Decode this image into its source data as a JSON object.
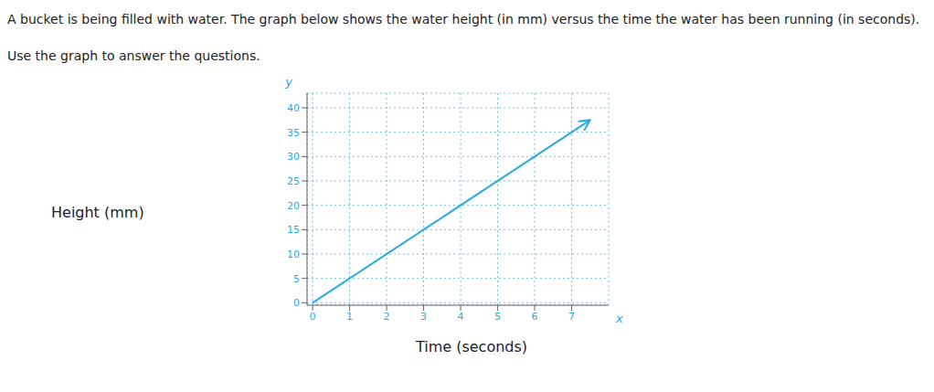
{
  "chart_data": {
    "type": "line",
    "title": "A bucket is being filled with water. The graph below shows the water height (in mm) versus the time the water has been running (in seconds).",
    "subtitle": "Use the graph to answer the questions.",
    "xlabel": "Time (seconds)",
    "ylabel": "Height (mm)",
    "annotations": [
      "y",
      "x"
    ],
    "x": [
      0,
      7.5
    ],
    "values": [
      0,
      37.5
    ],
    "color": "#29abe2",
    "xlim": [
      -0.15,
      8.0
    ],
    "ylim": [
      -0.5,
      43
    ],
    "xticks": [
      0,
      1,
      2,
      3,
      4,
      5,
      6,
      7
    ],
    "yticks": [
      0,
      5,
      10,
      15,
      20,
      25,
      30,
      35,
      40
    ],
    "grid": true
  }
}
